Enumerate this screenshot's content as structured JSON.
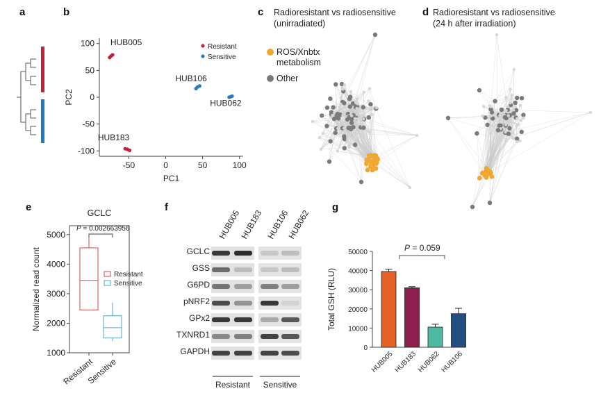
{
  "panel_labels": {
    "a": "a",
    "b": "b",
    "c": "c",
    "d": "d",
    "e": "e",
    "f": "f",
    "g": "g"
  },
  "panel_c": {
    "title_line1": "Radioresistant vs radiosensitive",
    "title_line2": "(unirradiated)",
    "legend_ros_line1": "ROS/Xnbtx",
    "legend_ros_line2": "metabolism",
    "legend_other": "Other",
    "colors": {
      "ros": "#f0a830",
      "other": "#7a7a7a",
      "edge": "#c8c8c8"
    }
  },
  "panel_d": {
    "title_line1": "Radioresistant vs radiosensitive",
    "title_line2": "(24 h after irradiation)"
  },
  "panel_f": {
    "lanes": [
      "HUB005",
      "HUB183",
      "HUB106",
      "HUB062"
    ],
    "rows": [
      "GCLC",
      "GSS",
      "G6PD",
      "pNRF2",
      "GPx2",
      "TXNRD1",
      "GAPDH"
    ],
    "group_resistant": "Resistant",
    "group_sensitive": "Sensitive"
  },
  "chart_data": [
    {
      "panel": "b",
      "type": "scatter",
      "xlabel": "PC1",
      "ylabel": "PC2",
      "xlim": [
        -90,
        105
      ],
      "ylim": [
        -110,
        110
      ],
      "xticks": [
        -50,
        0,
        50,
        100
      ],
      "yticks": [
        100,
        50,
        0,
        -50,
        -100
      ],
      "legend": {
        "position": "top-right",
        "entries": [
          "Resistant",
          "Sensitive"
        ]
      },
      "colors": {
        "Resistant": "#c0223b",
        "Sensitive": "#2b7bbf"
      },
      "series": [
        {
          "name": "Resistant",
          "points": [
            [
              -76,
              74
            ],
            [
              -74,
              77
            ],
            [
              -72,
              79
            ],
            [
              -55,
              -96
            ],
            [
              -52,
              -97
            ],
            [
              -49,
              -99
            ]
          ]
        },
        {
          "name": "Sensitive",
          "points": [
            [
              41,
              16
            ],
            [
              43,
              19
            ],
            [
              46,
              21
            ],
            [
              86,
              0
            ],
            [
              88,
              1
            ],
            [
              90,
              2
            ]
          ]
        }
      ],
      "annotations": [
        {
          "text": "HUB005",
          "x": -75,
          "y": 97
        },
        {
          "text": "HUB106",
          "x": 13,
          "y": 30
        },
        {
          "text": "HUB062",
          "x": 60,
          "y": -16
        },
        {
          "text": "HUB183",
          "x": -92,
          "y": -80
        }
      ]
    },
    {
      "panel": "e",
      "type": "box",
      "title": "GCLC",
      "ylabel": "Normalized read count",
      "ylim": [
        1000,
        5300
      ],
      "yticks": [
        1000,
        2000,
        3000,
        4000,
        5000
      ],
      "categories": [
        "Resistant",
        "Sensitive"
      ],
      "annotation": {
        "prefix": "P",
        "text": " = 0.002663956"
      },
      "legend": {
        "position": "right",
        "entries": [
          "Resistant",
          "Sensitive"
        ]
      },
      "colors": {
        "Resistant": "#d04a4a",
        "Sensitive": "#4aa7d0"
      },
      "boxes": [
        {
          "name": "Resistant",
          "min": 2450,
          "q1": 2450,
          "median": 3450,
          "q3": 4550,
          "max": 5000
        },
        {
          "name": "Sensitive",
          "min": 1400,
          "q1": 1500,
          "median": 1850,
          "q3": 2250,
          "max": 2700
        }
      ]
    },
    {
      "panel": "g",
      "type": "bar",
      "ylabel": "Total GSH (RLU)",
      "ylim": [
        0,
        50000
      ],
      "yticks": [
        0,
        10000,
        20000,
        30000,
        40000,
        50000
      ],
      "categories": [
        "HUB005",
        "HUB183",
        "HUB062",
        "HUB106"
      ],
      "values": [
        39500,
        31000,
        10500,
        17500
      ],
      "errors": [
        1200,
        600,
        1500,
        2800
      ],
      "colors": [
        "#e2622a",
        "#8c1f4b",
        "#4fb8a1",
        "#234e80"
      ],
      "annotation": {
        "prefix": "P",
        "text": " = 0.059"
      }
    }
  ]
}
